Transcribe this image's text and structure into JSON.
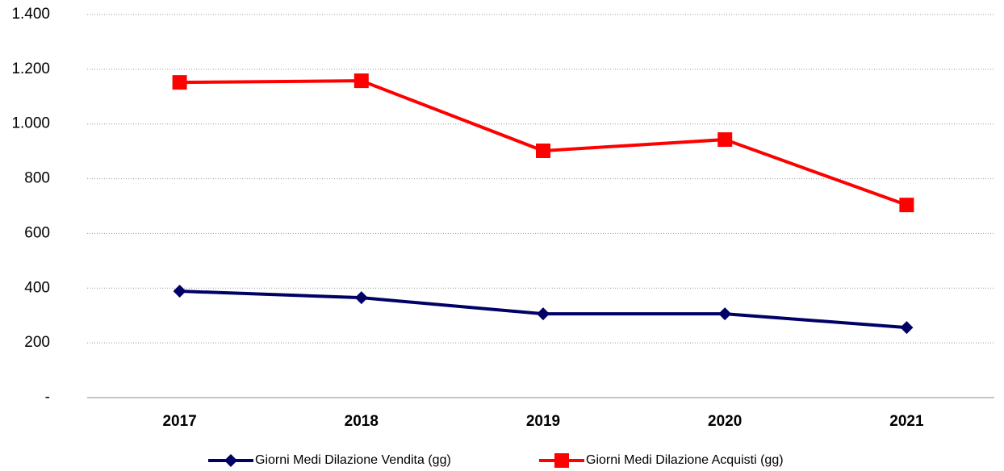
{
  "chart_data": {
    "type": "line",
    "categories": [
      "2017",
      "2018",
      "2019",
      "2020",
      "2021"
    ],
    "series": [
      {
        "name": "Giorni Medi Dilazione Vendita (gg)",
        "color": "#000066",
        "marker": "diamond",
        "values": [
          389,
          365,
          306,
          306,
          256
        ]
      },
      {
        "name": "Giorni Medi Dilazione Acquisti (gg)",
        "color": "#ff0000",
        "marker": "square",
        "values": [
          1152,
          1158,
          902,
          943,
          704
        ]
      }
    ],
    "ylim": [
      0,
      1400
    ],
    "yticks": [
      {
        "value": 0,
        "label": "-"
      },
      200,
      400,
      600,
      800,
      {
        "value": 1000,
        "label": "1.000"
      },
      {
        "value": 1200,
        "label": "1.200"
      },
      {
        "value": 1400,
        "label": "1.400"
      }
    ],
    "grid": true,
    "legend": "bottom"
  }
}
